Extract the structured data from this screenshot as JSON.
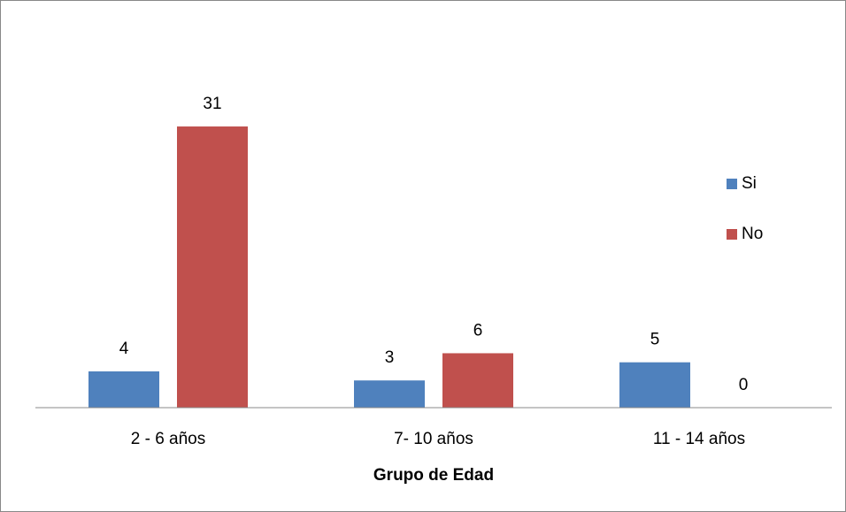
{
  "chart_data": {
    "type": "bar",
    "xlabel": "Grupo de Edad",
    "categories": [
      "2 - 6 años",
      "7- 10 años",
      "11 - 14 años"
    ],
    "series": [
      {
        "name": "Si",
        "color": "#4f81bd",
        "values": [
          4,
          3,
          5
        ]
      },
      {
        "name": "No",
        "color": "#c0504d",
        "values": [
          31,
          6,
          0
        ]
      }
    ],
    "ylim": [
      0,
      35
    ],
    "legend": "right"
  }
}
